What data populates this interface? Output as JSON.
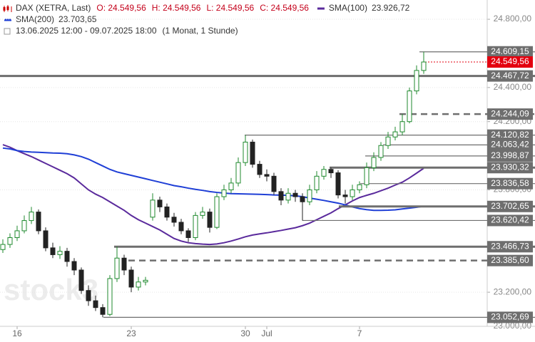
{
  "header": {
    "symbol": "DAX (XETRA, Last)",
    "ohlc": [
      "O: 24.549,56",
      "H: 24.549,56",
      "L: 24.549,56",
      "C: 24.549,56"
    ],
    "range": "13.06.2025 12:00 - 09.07.2025 18:00",
    "period": "(1 Monat, 1 Stunde)"
  },
  "watermark": "stock3",
  "chart_data": {
    "type": "candlestick",
    "categories": [
      null,
      null,
      "16",
      null,
      null,
      null,
      null,
      null,
      null,
      null,
      null,
      null,
      null,
      null,
      null,
      null,
      null,
      null,
      "23",
      null,
      null,
      null,
      null,
      null,
      null,
      null,
      null,
      null,
      null,
      null,
      null,
      null,
      null,
      null,
      "30",
      null,
      null,
      "Jul",
      null,
      null,
      null,
      null,
      null,
      null,
      null,
      null,
      null,
      null,
      null,
      null,
      "7",
      null,
      null,
      null,
      null,
      null,
      null,
      null,
      null,
      null
    ],
    "open": [
      23450,
      23480,
      23520,
      23560,
      23620,
      23670,
      23560,
      23460,
      23420,
      23440,
      23380,
      23330,
      23210,
      23150,
      23110,
      23070,
      23280,
      23400,
      23330,
      23230,
      23260,
      23640,
      23740,
      23700,
      23640,
      23610,
      23560,
      23520,
      23650,
      23670,
      23580,
      23760,
      23800,
      23840,
      23960,
      24080,
      23950,
      23890,
      23880,
      23790,
      23740,
      23780,
      23760,
      23730,
      23800,
      23880,
      23920,
      23900,
      23770,
      23760,
      23800,
      23830,
      23930,
      23990,
      24060,
      24110,
      24140,
      24200,
      24380,
      24500
    ],
    "high": [
      23510,
      23545,
      23590,
      23650,
      23700,
      23685,
      23580,
      23490,
      23470,
      23460,
      23400,
      23345,
      23240,
      23180,
      23130,
      23300,
      23466.73,
      23420,
      23350,
      23290,
      23290,
      23780,
      23760,
      23720,
      23665,
      23630,
      23575,
      23670,
      23700,
      23690,
      23780,
      23830,
      23870,
      23990,
      24120.82,
      24095,
      23970,
      23920,
      23900,
      23810,
      23810,
      23800,
      23780,
      23830,
      23910,
      23940,
      23930.32,
      23915,
      23800,
      23830,
      23850,
      23960,
      24020,
      24080,
      24140,
      24170,
      24244.09,
      24400,
      24530,
      24609.15
    ],
    "low": [
      23430,
      23460,
      23500,
      23545,
      23600,
      23540,
      23440,
      23400,
      23395,
      23350,
      23300,
      23190,
      23120,
      23090,
      23052.69,
      23060,
      23260,
      23300,
      23200,
      23210,
      23240,
      23620,
      23670,
      23620,
      23585,
      23540,
      23495,
      23505,
      23630,
      23550,
      23570,
      23740,
      23780,
      23820,
      23940,
      23930,
      23870,
      23850,
      23770,
      23710,
      23720,
      23730,
      23620.42,
      23710,
      23780,
      23860,
      23870,
      23750,
      23720,
      23740,
      23780,
      23810,
      23910,
      23970,
      24040,
      24090,
      24120,
      24190,
      24360,
      24480
    ],
    "close": [
      23480,
      23520,
      23560,
      23620,
      23670,
      23560,
      23460,
      23420,
      23440,
      23380,
      23330,
      23210,
      23150,
      23110,
      23070,
      23280,
      23400,
      23330,
      23230,
      23260,
      23270,
      23740,
      23700,
      23640,
      23610,
      23560,
      23520,
      23650,
      23670,
      23580,
      23760,
      23800,
      23840,
      23960,
      24080,
      23950,
      23890,
      23880,
      23790,
      23740,
      23780,
      23760,
      23730,
      23800,
      23880,
      23920,
      23900,
      23770,
      23760,
      23800,
      23830,
      23930,
      23990,
      24060,
      24110,
      24140,
      24200,
      24380,
      24500,
      24549.56
    ],
    "up_color": "#1f8a2e",
    "down_color": "#222222",
    "series": [
      {
        "name": "SMA(100)",
        "color": "#5a2a9c",
        "last_label": "23.926,72",
        "values": [
          24065,
          24050,
          24030,
          24012,
          23995,
          23975,
          23955,
          23935,
          23915,
          23895,
          23870,
          23835,
          23800,
          23775,
          23755,
          23730,
          23705,
          23680,
          23650,
          23625,
          23605,
          23585,
          23565,
          23540,
          23515,
          23500,
          23490,
          23485,
          23482,
          23480,
          23483,
          23490,
          23500,
          23512,
          23525,
          23535,
          23542,
          23548,
          23555,
          23562,
          23570,
          23578,
          23590,
          23605,
          23625,
          23645,
          23665,
          23690,
          23712,
          23735,
          23755,
          23768,
          23780,
          23795,
          23810,
          23828,
          23845,
          23870,
          23898,
          23926.72
        ]
      },
      {
        "name": "SMA(200)",
        "color": "#1f3fd6",
        "last_label": "23.703,65",
        "values": [
          24045,
          24040,
          24030,
          24025,
          24022,
          24020,
          24018,
          24016,
          24015,
          24012,
          24005,
          23995,
          23980,
          23960,
          23940,
          23920,
          23905,
          23895,
          23885,
          23875,
          23865,
          23855,
          23845,
          23835,
          23825,
          23818,
          23810,
          23803,
          23797,
          23790,
          23785,
          23781,
          23778,
          23777,
          23776,
          23775,
          23774,
          23772,
          23770,
          23769,
          23768,
          23765,
          23760,
          23752,
          23745,
          23738,
          23730,
          23722,
          23712,
          23700,
          23690,
          23684,
          23680,
          23680,
          23681,
          23683,
          23688,
          23693,
          23698,
          23703.65
        ]
      }
    ],
    "ylim": [
      23000,
      24913
    ],
    "yticks": [
      {
        "value": 24800,
        "label": "24.800,00"
      },
      {
        "value": 24400,
        "label": "24.400,00"
      },
      {
        "value": 24200,
        "label": "24.200,00"
      },
      {
        "value": 23800,
        "label": "23.800,00"
      },
      {
        "value": 23200,
        "label": "23.200,00"
      },
      {
        "value": 23000,
        "label": "23.000,00"
      }
    ],
    "grid": true,
    "levels": [
      {
        "value": 24609.15,
        "label": "24.609,15",
        "style": "solid"
      },
      {
        "value": 24549.56,
        "label": "24.549,56",
        "style": "current",
        "color": "#e3000f"
      },
      {
        "value": 24467.72,
        "label": "24.467,72",
        "style": "thick"
      },
      {
        "value": 24244.09,
        "label": "24.244,09",
        "style": "dashed"
      },
      {
        "value": 24120.82,
        "label": "24.120,82",
        "style": "solid"
      },
      {
        "value": 24063.42,
        "label": "24.063,42",
        "style": "solid"
      },
      {
        "value": 23998.87,
        "label": "23.998,87",
        "style": "solid"
      },
      {
        "value": 23930.32,
        "label": "23.930,32",
        "style": "thick"
      },
      {
        "value": 23836.58,
        "label": "23.836,58",
        "style": "solid"
      },
      {
        "value": 23702.65,
        "label": "23.702,65",
        "style": "thick"
      },
      {
        "value": 23620.42,
        "label": "23.620,42",
        "style": "solid"
      },
      {
        "value": 23466.73,
        "label": "23.466,73",
        "style": "thick"
      },
      {
        "value": 23385.6,
        "label": "23.385,60",
        "style": "dashed"
      },
      {
        "value": 23052.69,
        "label": "23.052,69",
        "style": "solid"
      }
    ]
  }
}
